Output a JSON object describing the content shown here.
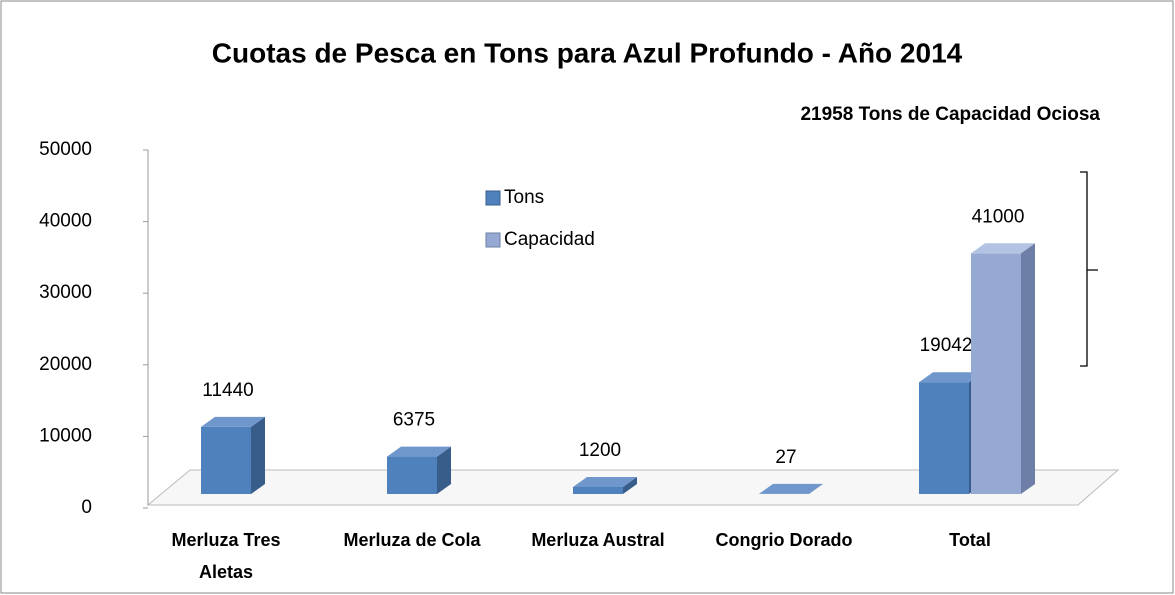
{
  "chart_data": {
    "type": "bar3d",
    "title": "Cuotas de Pesca en Tons para Azul Profundo - Año 2014",
    "annotation": "21958 Tons de Capacidad Ociosa",
    "categories": [
      "Merluza Tres Aletas",
      "Merluza de Cola",
      "Merluza Austral",
      "Congrio Dorado",
      "Total"
    ],
    "series": [
      {
        "name": "Tons",
        "color": "#4f81bd",
        "side": "#385d8a",
        "top": "#6f97cc",
        "values": [
          11440,
          6375,
          1200,
          27,
          19042
        ]
      },
      {
        "name": "Capacidad",
        "color": "#95a9d2",
        "side": "#6d7fa6",
        "top": "#b3c3e3",
        "values": [
          null,
          null,
          null,
          null,
          41000
        ]
      }
    ],
    "ylim": [
      0,
      50000
    ],
    "yticks": [
      0,
      10000,
      20000,
      30000,
      40000,
      50000
    ],
    "legend": "top-center"
  }
}
